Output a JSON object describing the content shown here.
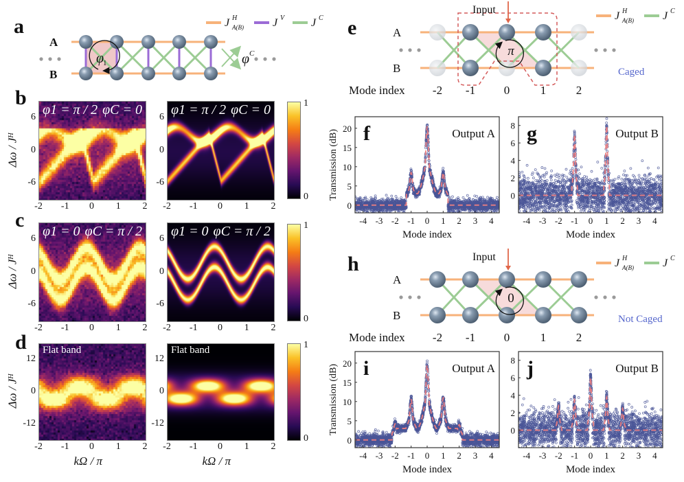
{
  "panels": {
    "a": {
      "letter": "a",
      "row_labels": [
        "A",
        "B"
      ],
      "legend": [
        {
          "label": "J",
          "sup": "H",
          "sub": "A(B)",
          "color": "#f7b27a"
        },
        {
          "label": "J",
          "sup": "V",
          "sub": "",
          "color": "#9b6bd6"
        },
        {
          "label": "J",
          "sup": "C",
          "sub": "",
          "color": "#9ccc94"
        }
      ],
      "phase_label": "φ",
      "phase_sub": "1",
      "phic_label": "φ",
      "phic_sup": "C"
    },
    "e": {
      "letter": "e",
      "input_label": "Input",
      "row_labels": [
        "A",
        "B"
      ],
      "mode_label": "Mode index",
      "mode_indices": [
        "-2",
        "-1",
        "0",
        "1",
        "2"
      ],
      "flux_label": "π",
      "status": "Caged",
      "legend": [
        {
          "label": "J",
          "sup": "H",
          "sub": "A(B)",
          "color": "#f7b27a"
        },
        {
          "label": "J",
          "sup": "C",
          "sub": "",
          "color": "#9ccc94"
        }
      ]
    },
    "h": {
      "letter": "h",
      "input_label": "Input",
      "row_labels": [
        "A",
        "B"
      ],
      "mode_label": "Mode index",
      "mode_indices": [
        "-2",
        "-1",
        "0",
        "1",
        "2"
      ],
      "flux_label": "0",
      "status": "Not Caged",
      "legend": [
        {
          "label": "J",
          "sup": "H",
          "sub": "A(B)",
          "color": "#f7b27a"
        },
        {
          "label": "J",
          "sup": "C",
          "sub": "",
          "color": "#9ccc94"
        }
      ]
    }
  },
  "colors": {
    "coupling_h": "#f7b27a",
    "coupling_v": "#9b6bd6",
    "coupling_c": "#9ccc94",
    "site": "#6e8196",
    "status_text": "#5566cc",
    "input_arrow": "#e0664a",
    "scatter": "#4a5597",
    "fit": "#f08080"
  },
  "chart_data": [
    {
      "id": "b-exp",
      "panel": "b",
      "type": "heatmap",
      "kind": "experiment",
      "annotation_left": "φ1 = π / 2",
      "annotation_right": "φC = 0",
      "xlabel": "",
      "ylabel": "Δω / J^H",
      "xlim": [
        -2,
        2
      ],
      "ylim": [
        -9,
        9
      ],
      "xticks": [
        "-2",
        "-1",
        "0",
        "1",
        "2"
      ],
      "yticks": [
        "6",
        "0",
        "-6"
      ],
      "model": "phi1=pi/2"
    },
    {
      "id": "b-theory",
      "panel": "b",
      "type": "heatmap",
      "kind": "theory",
      "annotation_left": "φ1 = π / 2",
      "annotation_right": "φC = 0",
      "xlim": [
        -2,
        2
      ],
      "ylim": [
        -9,
        9
      ],
      "xticks": [
        "-2",
        "-1",
        "0",
        "1",
        "2"
      ],
      "yticks": [
        "6",
        "0",
        "-6"
      ],
      "colorbar": {
        "min": "0",
        "max": "1"
      },
      "model": "phi1=pi/2"
    },
    {
      "id": "c-exp",
      "panel": "c",
      "type": "heatmap",
      "kind": "experiment",
      "annotation_left": "φ1 = 0",
      "annotation_right": "φC = π / 2",
      "ylabel": "Δω / J^H",
      "xlim": [
        -2,
        2
      ],
      "ylim": [
        -9,
        9
      ],
      "xticks": [
        "-2",
        "-1",
        "0",
        "1",
        "2"
      ],
      "yticks": [
        "6",
        "0",
        "-6"
      ],
      "model": "phiC=pi/2"
    },
    {
      "id": "c-theory",
      "panel": "c",
      "type": "heatmap",
      "kind": "theory",
      "annotation_left": "φ1 = 0",
      "annotation_right": "φC = π / 2",
      "xlim": [
        -2,
        2
      ],
      "ylim": [
        -9,
        9
      ],
      "xticks": [
        "-2",
        "-1",
        "0",
        "1",
        "2"
      ],
      "yticks": [
        "6",
        "0",
        "-6"
      ],
      "colorbar": {
        "min": "0",
        "max": "1"
      },
      "model": "phiC=pi/2"
    },
    {
      "id": "d-exp",
      "panel": "d",
      "type": "heatmap",
      "kind": "experiment",
      "annotation_left": "Flat band",
      "xlabel": "kΩ / π",
      "ylabel": "Δω / J^H",
      "xlim": [
        -2,
        2
      ],
      "ylim": [
        -18,
        18
      ],
      "xticks": [
        "-2",
        "-1",
        "0",
        "1",
        "2"
      ],
      "yticks": [
        "12",
        "0",
        "-12"
      ],
      "model": "flat"
    },
    {
      "id": "d-theory",
      "panel": "d",
      "type": "heatmap",
      "kind": "theory",
      "annotation_left": "Flat band",
      "xlabel": "kΩ / π",
      "xlim": [
        -2,
        2
      ],
      "ylim": [
        -18,
        18
      ],
      "xticks": [
        "-2",
        "-1",
        "0",
        "1",
        "2"
      ],
      "yticks": [
        "12",
        "0",
        "-12"
      ],
      "colorbar": {
        "min": "0",
        "max": "1"
      },
      "model": "flat"
    },
    {
      "id": "f",
      "panel": "f",
      "type": "scatter",
      "title": "Output A",
      "xlabel": "Mode index",
      "ylabel": "Transmission (dB)",
      "xlim": [
        -4.5,
        4.5
      ],
      "ylim": [
        -2,
        23
      ],
      "xticks": [
        "-4",
        "-3",
        "-2",
        "-1",
        "0",
        "1",
        "2",
        "3",
        "4"
      ],
      "yticks": [
        "0",
        "5",
        "10",
        "15",
        "20"
      ],
      "peaks": [
        {
          "x": -1,
          "y": 8.5
        },
        {
          "x": 0,
          "y": 20.5
        },
        {
          "x": 1,
          "y": 8.5
        }
      ],
      "baseline": 0,
      "noise": 1.2,
      "signal_range": [
        -1.3,
        1.3
      ]
    },
    {
      "id": "g",
      "panel": "g",
      "type": "scatter",
      "title": "Output B",
      "xlabel": "Mode index",
      "ylabel": "",
      "xlim": [
        -4.5,
        4.5
      ],
      "ylim": [
        -2,
        9
      ],
      "xticks": [
        "-4",
        "-3",
        "-2",
        "-1",
        "0",
        "1",
        "2",
        "3",
        "4"
      ],
      "yticks": [
        "0",
        "2",
        "4",
        "6",
        "8"
      ],
      "peaks": [
        {
          "x": -1,
          "y": 7.0
        },
        {
          "x": 1,
          "y": 8.0
        }
      ],
      "baseline": 0,
      "noise": 2.0,
      "signal_range": [
        -1.15,
        1.15
      ]
    },
    {
      "id": "i",
      "panel": "i",
      "type": "scatter",
      "title": "Output A",
      "xlabel": "Mode index",
      "ylabel": "Transmission (dB)",
      "xlim": [
        -4.5,
        4.5
      ],
      "ylim": [
        -2,
        23
      ],
      "xticks": [
        "-4",
        "-3",
        "-2",
        "-1",
        "0",
        "1",
        "2",
        "3",
        "4"
      ],
      "yticks": [
        "0",
        "5",
        "10",
        "15",
        "20"
      ],
      "peaks": [
        {
          "x": -2,
          "y": 4.2
        },
        {
          "x": -1,
          "y": 10.5
        },
        {
          "x": 0,
          "y": 19.5
        },
        {
          "x": 1,
          "y": 11.0
        },
        {
          "x": 2,
          "y": 4.0
        }
      ],
      "baseline": 0,
      "noise": 1.2,
      "signal_range": [
        -2.2,
        2.2
      ]
    },
    {
      "id": "j",
      "panel": "j",
      "type": "scatter",
      "title": "Output B",
      "xlabel": "Mode index",
      "ylabel": "",
      "xlim": [
        -4.5,
        4.5
      ],
      "ylim": [
        -2,
        9
      ],
      "xticks": [
        "-4",
        "-3",
        "-2",
        "-1",
        "0",
        "1",
        "2",
        "3",
        "4"
      ],
      "yticks": [
        "0",
        "2",
        "4",
        "6",
        "8"
      ],
      "peaks": [
        {
          "x": -2,
          "y": 2.8
        },
        {
          "x": -1,
          "y": 3.5
        },
        {
          "x": 0,
          "y": 6.0
        },
        {
          "x": 1,
          "y": 3.8
        },
        {
          "x": 2,
          "y": 2.5
        }
      ],
      "baseline": 0,
      "noise": 2.0,
      "signal_range": [
        -1.2,
        1.2
      ]
    }
  ]
}
